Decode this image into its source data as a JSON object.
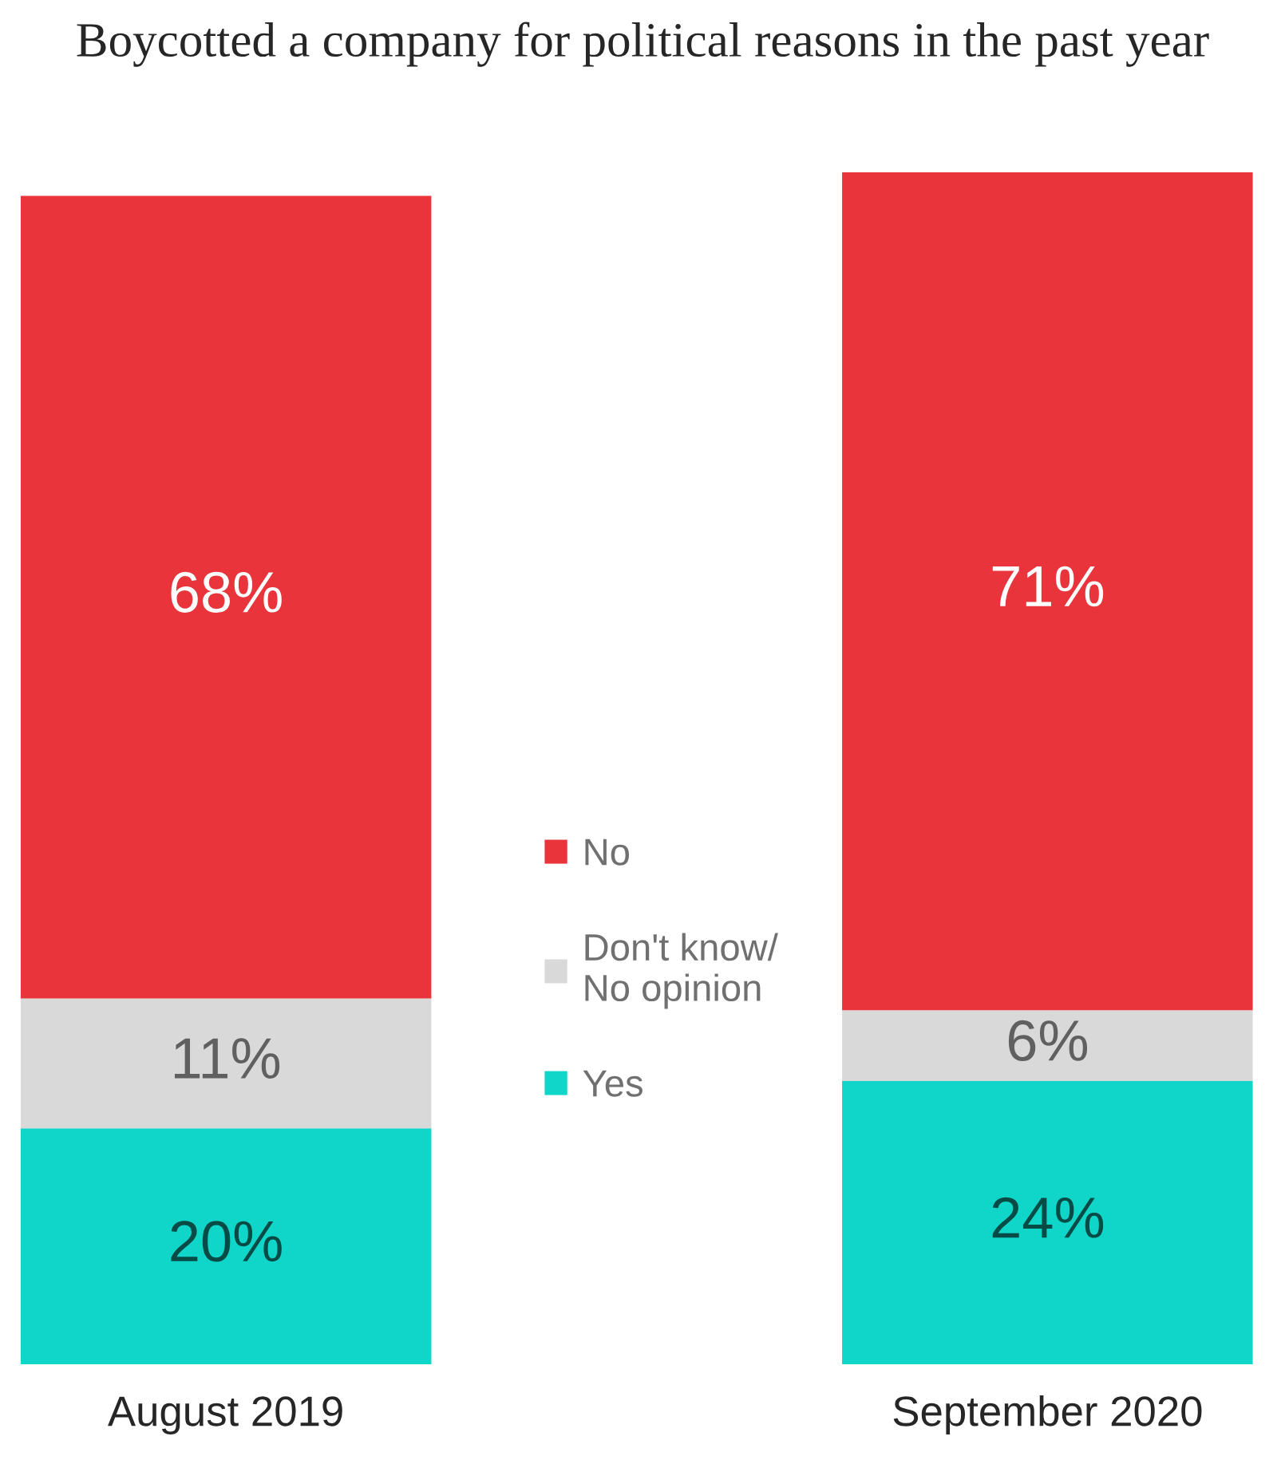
{
  "chart_data": {
    "type": "bar",
    "title": "Boycotted a company for political reasons in the past year",
    "categories": [
      "August 2019",
      "September 2020"
    ],
    "stacked": true,
    "legend": "center",
    "grid": false,
    "series": [
      {
        "name": "Yes",
        "color": "#10d5c9",
        "values": [
          20,
          24
        ],
        "value_labels": [
          "20%",
          "24%"
        ]
      },
      {
        "name": "Don't know/\nNo opinion",
        "color": "#d9d9d9",
        "values": [
          11,
          6
        ],
        "value_labels": [
          "11%",
          "6%"
        ]
      },
      {
        "name": "No",
        "color": "#e8343a",
        "values": [
          68,
          71
        ],
        "value_labels": [
          "68%",
          "71%"
        ]
      }
    ]
  }
}
